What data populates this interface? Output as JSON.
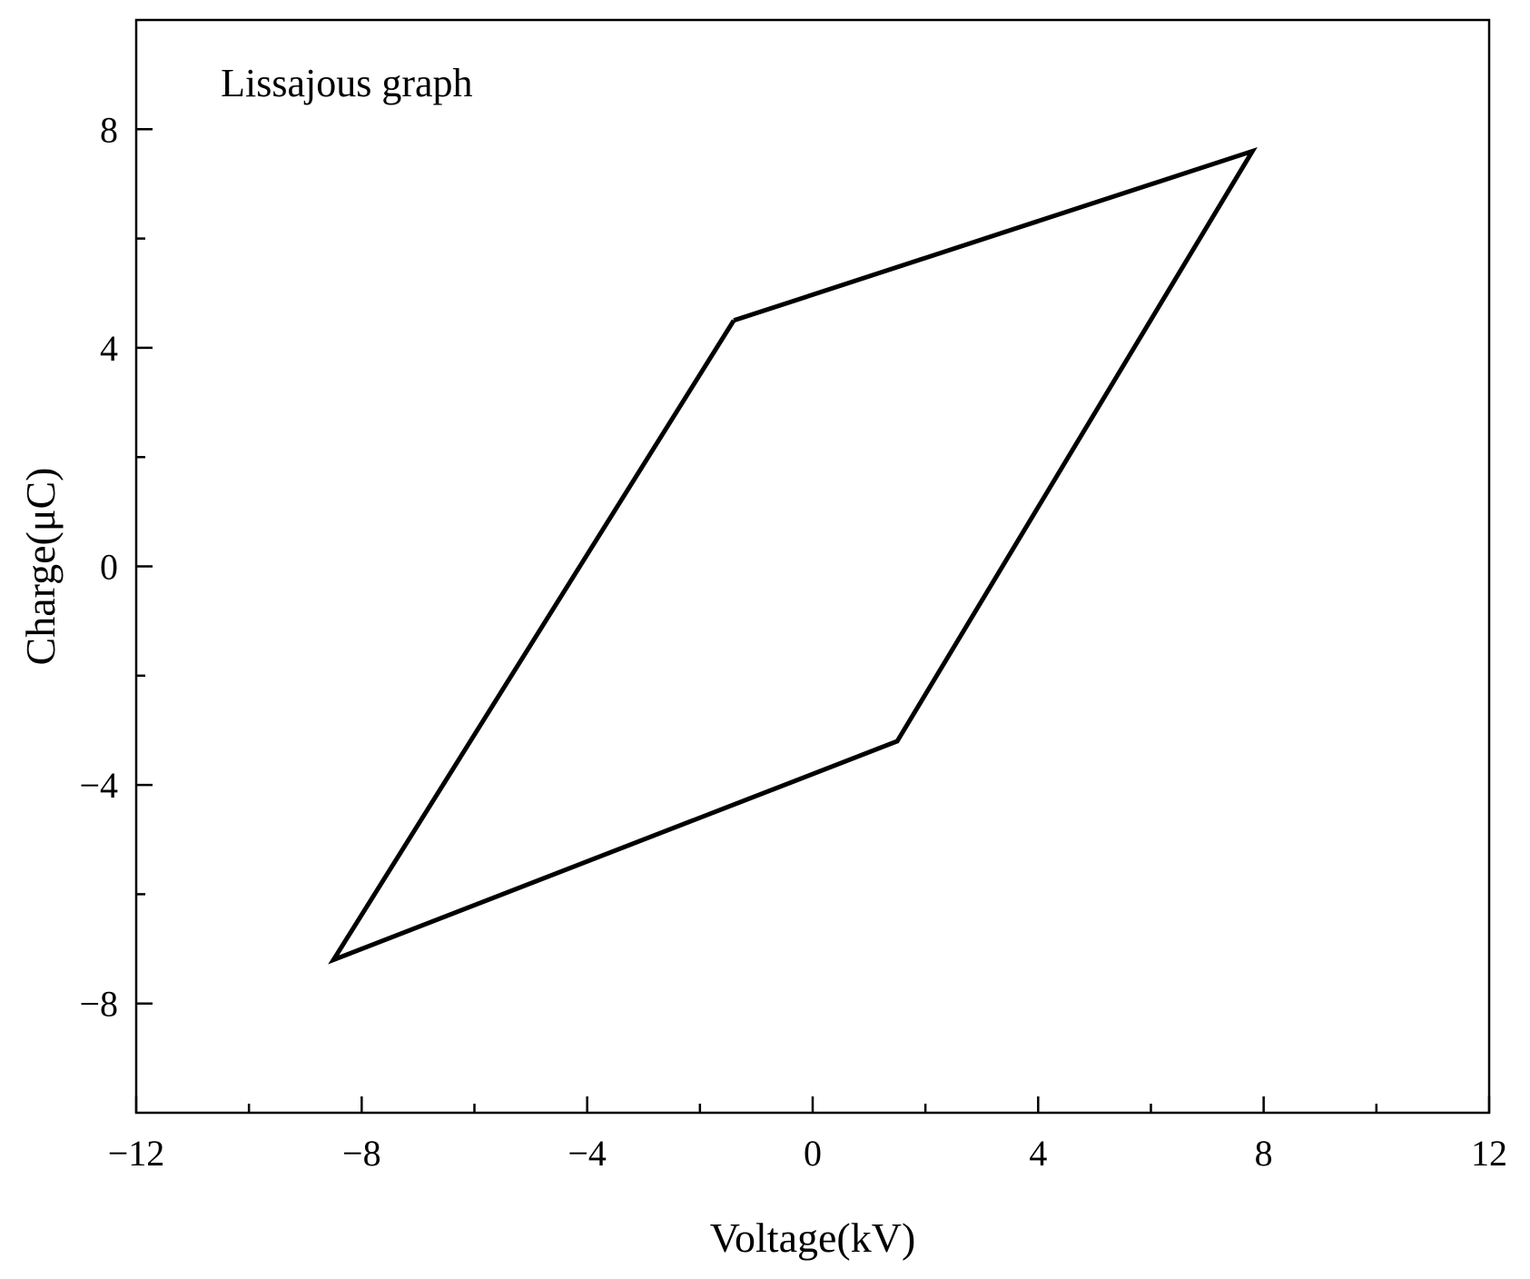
{
  "chart_data": {
    "type": "line",
    "xlabel": "Voltage(kV)",
    "ylabel": "Charge(μC)",
    "xlim": [
      -12,
      12
    ],
    "ylim": [
      -10,
      10
    ],
    "x_ticks": [
      -12,
      -8,
      -4,
      0,
      4,
      8,
      12
    ],
    "x_tick_labels": [
      "−12",
      "−8",
      "−4",
      "0",
      "4",
      "8",
      "12"
    ],
    "y_ticks": [
      -8,
      -4,
      0,
      4,
      8
    ],
    "y_tick_labels": [
      "−8",
      "−4",
      "0",
      "4",
      "8"
    ],
    "grid": false,
    "annotations": [
      {
        "text": "Lissajous graph",
        "x": -10.5,
        "y": 8.6
      }
    ],
    "series": [
      {
        "x": [
          -1.4,
          7.8,
          1.5,
          -8.5,
          -1.4
        ],
        "y": [
          4.5,
          7.6,
          -3.2,
          -7.2,
          4.5
        ],
        "color": "#000000"
      }
    ]
  }
}
